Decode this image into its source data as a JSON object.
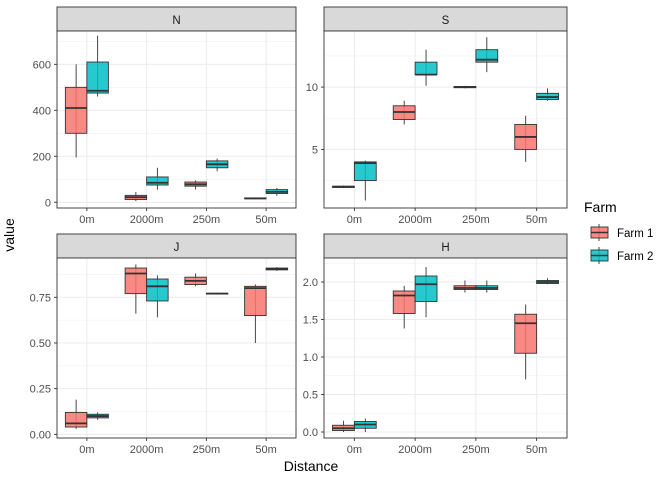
{
  "x_title": "Distance",
  "y_title": "value",
  "legend": {
    "title": "Farm",
    "items": [
      {
        "label": "Farm 1",
        "color": "#F8766D"
      },
      {
        "label": "Farm 2",
        "color": "#00BFC4"
      }
    ]
  },
  "chart_data": {
    "type": "boxplot",
    "layout": "facet_wrap 2x2, free y scales",
    "x_categories": [
      "0m",
      "2000m",
      "250m",
      "50m"
    ],
    "series_names": [
      "Farm 1",
      "Farm 2"
    ],
    "colors": {
      "Farm 1": "#F8766D",
      "Farm 2": "#00BFC4"
    },
    "grid": true,
    "legend_position": "right",
    "panels": [
      {
        "title": "N",
        "ylim": [
          -25,
          745
        ],
        "yticks": [
          0,
          200,
          400,
          600
        ],
        "ytick_labels": [
          "0",
          "200",
          "400",
          "600"
        ],
        "boxes": {
          "Farm 1": [
            [
              195,
              300,
              410,
              500,
              600
            ],
            [
              5,
              12,
              22,
              30,
              45
            ],
            null,
            [
              13,
              15,
              17,
              19,
              20
            ]
          ],
          "Farm 2": [
            [
              460,
              475,
              485,
              610,
              725
            ],
            [
              55,
              75,
              85,
              110,
              150
            ],
            [
              135,
              150,
              165,
              180,
              190
            ],
            [
              28,
              38,
              45,
              55,
              62
            ]
          ]
        },
        "farm1_250m": [
          55,
          70,
          78,
          88,
          95
        ]
      },
      {
        "title": "S",
        "ylim": [
          0.3,
          14.5
        ],
        "yticks": [
          5,
          10
        ],
        "ytick_labels": [
          "5",
          "10"
        ],
        "boxes": {
          "Farm 1": [
            [
              1.9,
              1.95,
              2.0,
              2.05,
              2.1
            ],
            [
              7.0,
              7.4,
              8.0,
              8.5,
              8.9
            ],
            [
              9.9,
              9.95,
              10.0,
              10.05,
              10.1
            ],
            [
              4.0,
              5.0,
              6.0,
              7.0,
              7.7
            ]
          ],
          "Farm 2": [
            [
              0.9,
              2.5,
              3.9,
              4.0,
              4.1
            ],
            [
              10.1,
              11.0,
              11.0,
              12.0,
              13.0
            ],
            [
              11.2,
              12.0,
              12.2,
              13.0,
              14.0
            ],
            [
              8.9,
              9.0,
              9.2,
              9.5,
              9.9
            ]
          ]
        }
      },
      {
        "title": "J",
        "ylim": [
          -0.02,
          0.965
        ],
        "yticks": [
          0.0,
          0.25,
          0.5,
          0.75
        ],
        "ytick_labels": [
          "0.00",
          "0.25",
          "0.50",
          "0.75"
        ],
        "boxes": {
          "Farm 1": [
            [
              0.03,
              0.04,
              0.06,
              0.12,
              0.19
            ],
            [
              0.66,
              0.77,
              0.88,
              0.91,
              0.93
            ],
            [
              0.81,
              0.82,
              0.84,
              0.86,
              0.88
            ],
            [
              0.5,
              0.65,
              0.8,
              0.81,
              0.82
            ]
          ],
          "Farm 2": [
            [
              0.08,
              0.09,
              0.1,
              0.11,
              0.12
            ],
            [
              0.64,
              0.73,
              0.81,
              0.85,
              0.87
            ],
            [
              0.765,
              0.768,
              0.77,
              0.772,
              0.775
            ],
            [
              0.895,
              0.9,
              0.905,
              0.91,
              0.915
            ]
          ]
        }
      },
      {
        "title": "H",
        "ylim": [
          -0.08,
          2.32
        ],
        "yticks": [
          0.0,
          0.5,
          1.0,
          1.5,
          2.0
        ],
        "ytick_labels": [
          "0.0",
          "0.5",
          "1.0",
          "1.5",
          "2.0"
        ],
        "boxes": {
          "Farm 1": [
            [
              0.0,
              0.02,
              0.05,
              0.09,
              0.15
            ],
            [
              1.38,
              1.58,
              1.82,
              1.88,
              1.95
            ],
            [
              1.86,
              1.9,
              1.92,
              1.95,
              2.02
            ],
            [
              0.7,
              1.05,
              1.45,
              1.57,
              1.7
            ]
          ],
          "Farm 2": [
            [
              0.0,
              0.05,
              0.1,
              0.14,
              0.18
            ],
            [
              1.53,
              1.74,
              1.97,
              2.08,
              2.2
            ],
            [
              1.86,
              1.9,
              1.92,
              1.95,
              2.02
            ],
            [
              1.97,
              1.98,
              2.0,
              2.02,
              2.05
            ]
          ]
        }
      }
    ]
  }
}
